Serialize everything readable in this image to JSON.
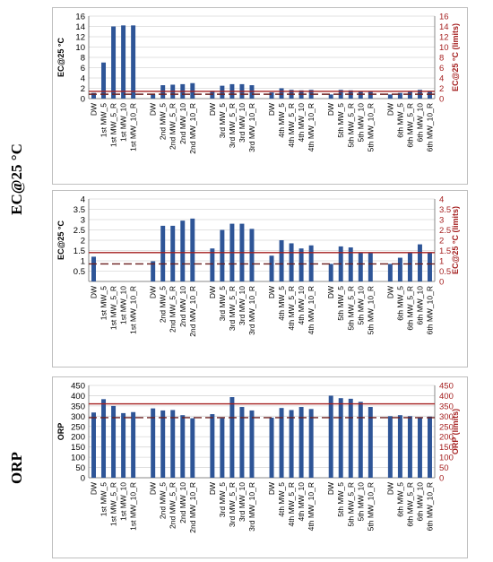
{
  "side_labels": {
    "ec": "EC@25 °C",
    "orp": "ORP"
  },
  "colors": {
    "bar": "#2e5597",
    "limit": "#a52020",
    "right_axis": "#a52020"
  },
  "chart_data": [
    {
      "type": "bar",
      "ylabel": "EC@25 °C",
      "y2label": "EC@25 °C (limits)",
      "ylim": [
        0,
        16
      ],
      "yticks": [
        0,
        2,
        4,
        6,
        8,
        10,
        12,
        14,
        16
      ],
      "y2ticks": [
        0,
        2,
        4,
        6,
        8,
        10,
        12,
        14,
        16
      ],
      "grid": true,
      "categories": [
        "DW",
        "1st MW_5",
        "1st MW_5_R",
        "1st MW_10",
        "1st MW_10_R",
        "DW",
        "2nd MW_5",
        "2nd MW_5_R",
        "2nd MW_10",
        "2nd MW_10_R",
        "DW",
        "3rd MW_5",
        "3rd MW_5_R",
        "3rd MW_10",
        "3rd MW_10_R",
        "DW",
        "4th MW_5",
        "4th MW_5_R",
        "4th MW_10",
        "4th MW_10_R",
        "DW",
        "5th MW_5",
        "5th MW_5_R",
        "5th MW_10",
        "5th MW_10_R",
        "DW",
        "6th MW_5",
        "6th MW_5_R",
        "6th MW_10",
        "6th MW_10_R"
      ],
      "values": [
        1.1,
        7.0,
        14.0,
        14.2,
        14.2,
        0.9,
        2.6,
        2.7,
        2.8,
        3.0,
        1.5,
        2.5,
        2.8,
        2.8,
        2.6,
        1.2,
        2.0,
        1.7,
        1.6,
        1.7,
        0.8,
        1.7,
        1.6,
        1.4,
        1.3,
        0.8,
        1.1,
        1.3,
        1.7,
        1.4
      ],
      "limits": [
        {
          "value": 1.4,
          "style": "solid"
        },
        {
          "value": 0.85,
          "style": "dashed"
        }
      ]
    },
    {
      "type": "bar",
      "ylabel": "EC@25 °C",
      "y2label": "EC@25 °C (limits)",
      "ylim": [
        0,
        4
      ],
      "yticks": [
        0.5,
        1,
        1.5,
        2,
        2.5,
        3,
        3.5,
        4
      ],
      "y2ticks": [
        0,
        0.5,
        1,
        1.5,
        2,
        2.5,
        3,
        3.5,
        4
      ],
      "grid": true,
      "categories": [
        "DW",
        "1st MW_5",
        "1st MW_5_R",
        "1st MW_10",
        "1st MW_10_R",
        "DW",
        "2nd MW_5",
        "2nd MW_5_R",
        "2nd MW_10",
        "2nd MW_10_R",
        "DW",
        "3rd MW_5",
        "3rd MW_5_R",
        "3rd MW_10",
        "3rd MW_10_R",
        "DW",
        "4th MW_5",
        "4th MW_5_R",
        "4th MW_10",
        "4th MW_10_R",
        "DW",
        "5th MW_5",
        "5th MW_5_R",
        "5th MW_10",
        "5th MW_10_R",
        "DW",
        "6th MW_5",
        "6th MW_5_R",
        "6th MW_10",
        "6th MW_10_R"
      ],
      "values": [
        1.2,
        null,
        null,
        null,
        null,
        0.98,
        2.7,
        2.7,
        2.95,
        3.05,
        1.6,
        2.5,
        2.8,
        2.8,
        2.55,
        1.25,
        2.0,
        1.85,
        1.6,
        1.75,
        0.85,
        1.7,
        1.65,
        1.4,
        1.4,
        0.85,
        1.15,
        1.4,
        1.8,
        1.4
      ],
      "limits": [
        {
          "value": 1.4,
          "style": "solid"
        },
        {
          "value": 0.85,
          "style": "dashed"
        }
      ]
    },
    {
      "type": "bar",
      "ylabel": "ORP",
      "y2label": "ORP (limits)",
      "ylim": [
        0,
        450
      ],
      "yticks": [
        0,
        50,
        100,
        150,
        200,
        250,
        300,
        350,
        400,
        450
      ],
      "y2ticks": [
        0,
        50,
        100,
        150,
        200,
        250,
        300,
        350,
        400,
        450
      ],
      "grid": true,
      "categories": [
        "DW",
        "1st MW_5",
        "1st MW_5_R",
        "1st MW_10",
        "1st MW_10_R",
        "DW",
        "2nd MW_5",
        "2nd MW_5_R",
        "2nd MW_10",
        "2nd MW_10_R",
        "DW",
        "3rd MW_5",
        "3rd MW_5_R",
        "3rd MW_10",
        "3rd MW_10_R",
        "DW",
        "4th MW_5",
        "4th MW_5_R",
        "4th MW_10",
        "4th MW_10_R",
        "DW",
        "5th MW_5",
        "5th MW_5_R",
        "5th MW_10",
        "5th MW_10_R",
        "DW",
        "6th MW_5",
        "6th MW_5_R",
        "6th MW_10",
        "6th MW_10_R"
      ],
      "values": [
        318,
        383,
        350,
        315,
        320,
        338,
        328,
        330,
        305,
        290,
        310,
        290,
        393,
        345,
        328,
        293,
        340,
        330,
        345,
        335,
        400,
        388,
        385,
        370,
        345,
        300,
        305,
        300,
        295,
        298
      ],
      "limits": [
        {
          "value": 360,
          "style": "solid"
        },
        {
          "value": 293,
          "style": "dashed"
        }
      ]
    }
  ]
}
